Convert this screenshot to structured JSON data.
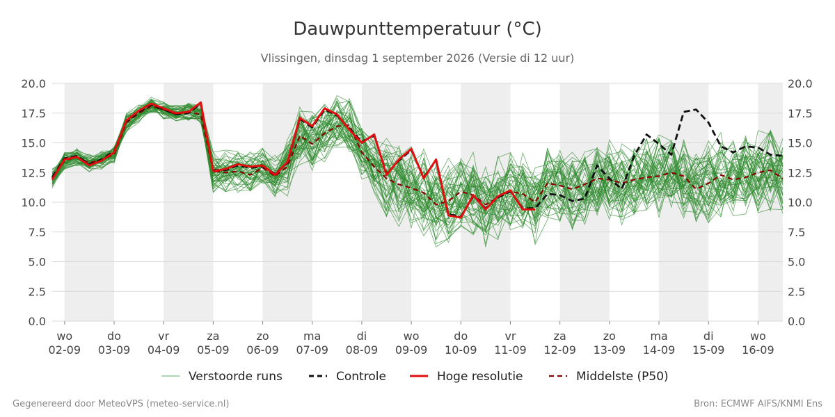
{
  "header": {
    "title": "Dauwpunttemperatuur (°C)",
    "subtitle": "Vlissingen, dinsdag  1 september 2026 (Versie di 12 uur)"
  },
  "footer": {
    "left": "Gegenereerd door MeteoVPS (meteo-service.nl)",
    "right": "Bron: ECMWF AIFS/KNMI Ens"
  },
  "legend": [
    {
      "label": "Verstoorde runs",
      "color": "#3a9a3a",
      "style": "thin"
    },
    {
      "label": "Controle",
      "color": "#111111",
      "style": "dashed"
    },
    {
      "label": "Hoge resolutie",
      "color": "#e01010",
      "style": "solid"
    },
    {
      "label": "Middelste (P50)",
      "color": "#8b0000",
      "style": "dashed"
    }
  ],
  "chart_data": {
    "type": "line",
    "title": "Dauwpunttemperatuur (°C)",
    "x_unit": "dagen vanaf 02-09 00 uur",
    "xlim": [
      -0.25,
      14.5
    ],
    "ylim": [
      0,
      20
    ],
    "y_ticks": [
      "0.0",
      "2.5",
      "5.0",
      "7.5",
      "10.0",
      "12.5",
      "15.0",
      "17.5",
      "20.0"
    ],
    "days": [
      {
        "dow": "wo",
        "date": "02-09"
      },
      {
        "dow": "do",
        "date": "03-09"
      },
      {
        "dow": "vr",
        "date": "04-09"
      },
      {
        "dow": "za",
        "date": "05-09"
      },
      {
        "dow": "zo",
        "date": "06-09"
      },
      {
        "dow": "ma",
        "date": "07-09"
      },
      {
        "dow": "di",
        "date": "08-09"
      },
      {
        "dow": "wo",
        "date": "09-09"
      },
      {
        "dow": "do",
        "date": "10-09"
      },
      {
        "dow": "vr",
        "date": "11-09"
      },
      {
        "dow": "za",
        "date": "12-09"
      },
      {
        "dow": "zo",
        "date": "13-09"
      },
      {
        "dow": "ma",
        "date": "14-09"
      },
      {
        "dow": "di",
        "date": "15-09"
      },
      {
        "dow": "wo",
        "date": "16-09"
      }
    ],
    "grid": true,
    "legend_position": "bottom",
    "ensemble_members": 50,
    "ensemble_color": "#2e8b2e",
    "series": [
      {
        "name": "Hoge resolutie",
        "color": "#e01010",
        "points": [
          [
            -0.25,
            11.9
          ],
          [
            0,
            13.6
          ],
          [
            0.25,
            13.8
          ],
          [
            0.5,
            13.1
          ],
          [
            0.75,
            13.5
          ],
          [
            1,
            14.2
          ],
          [
            1.25,
            16.9
          ],
          [
            1.5,
            17.7
          ],
          [
            1.75,
            18.3
          ],
          [
            2,
            17.9
          ],
          [
            2.25,
            17.5
          ],
          [
            2.5,
            17.6
          ],
          [
            2.75,
            18.4
          ],
          [
            3,
            12.6
          ],
          [
            3.25,
            12.8
          ],
          [
            3.5,
            13.2
          ],
          [
            3.75,
            13.0
          ],
          [
            4,
            13.1
          ],
          [
            4.25,
            12.3
          ],
          [
            4.5,
            13.4
          ],
          [
            4.75,
            17.1
          ],
          [
            5,
            16.4
          ],
          [
            5.25,
            17.9
          ],
          [
            5.5,
            17.4
          ],
          [
            5.75,
            16.1
          ],
          [
            6,
            15.0
          ],
          [
            6.25,
            15.7
          ],
          [
            6.5,
            12.3
          ],
          [
            6.75,
            13.6
          ],
          [
            7,
            14.5
          ],
          [
            7.25,
            12.0
          ],
          [
            7.5,
            13.6
          ],
          [
            7.75,
            8.9
          ],
          [
            8,
            8.7
          ],
          [
            8.25,
            10.6
          ],
          [
            8.5,
            9.4
          ],
          [
            8.75,
            10.5
          ],
          [
            9,
            11.0
          ],
          [
            9.25,
            9.4
          ],
          [
            9.5,
            9.4
          ]
        ]
      },
      {
        "name": "Controle",
        "color": "#111111",
        "points": [
          [
            -0.25,
            12.1
          ],
          [
            0,
            13.7
          ],
          [
            0.25,
            13.9
          ],
          [
            0.5,
            13.2
          ],
          [
            0.75,
            13.6
          ],
          [
            1,
            14.3
          ],
          [
            1.25,
            16.8
          ],
          [
            1.5,
            17.6
          ],
          [
            1.75,
            18.2
          ],
          [
            2,
            17.8
          ],
          [
            2.25,
            17.4
          ],
          [
            2.5,
            17.5
          ],
          [
            2.75,
            18.3
          ],
          [
            3,
            12.7
          ],
          [
            3.25,
            12.7
          ],
          [
            3.5,
            13.1
          ],
          [
            3.75,
            12.9
          ],
          [
            4,
            13.0
          ],
          [
            4.25,
            12.4
          ],
          [
            4.5,
            13.3
          ],
          [
            4.75,
            17.0
          ],
          [
            5,
            16.3
          ],
          [
            5.25,
            17.8
          ],
          [
            5.5,
            17.3
          ],
          [
            5.75,
            16.2
          ],
          [
            6,
            15.1
          ],
          [
            6.25,
            15.6
          ],
          [
            6.5,
            12.4
          ],
          [
            6.75,
            13.5
          ],
          [
            7,
            14.4
          ],
          [
            7.25,
            12.1
          ],
          [
            7.5,
            13.5
          ],
          [
            7.75,
            9.0
          ],
          [
            8,
            8.8
          ],
          [
            8.25,
            10.5
          ],
          [
            8.5,
            9.5
          ],
          [
            8.75,
            10.4
          ],
          [
            9,
            10.9
          ],
          [
            9.25,
            9.5
          ],
          [
            9.5,
            9.5
          ],
          [
            9.75,
            10.7
          ],
          [
            10,
            10.6
          ],
          [
            10.25,
            10.1
          ],
          [
            10.5,
            10.3
          ],
          [
            10.75,
            13.1
          ],
          [
            11,
            12.0
          ],
          [
            11.25,
            11.1
          ],
          [
            11.5,
            13.9
          ],
          [
            11.75,
            15.7
          ],
          [
            12,
            14.9
          ],
          [
            12.25,
            14.0
          ],
          [
            12.5,
            17.6
          ],
          [
            12.75,
            17.8
          ],
          [
            13,
            16.7
          ],
          [
            13.25,
            14.7
          ],
          [
            13.5,
            14.2
          ],
          [
            13.75,
            14.7
          ],
          [
            14,
            14.6
          ],
          [
            14.25,
            14.0
          ],
          [
            14.5,
            13.9
          ]
        ]
      },
      {
        "name": "Middelste (P50)",
        "color": "#8b0000",
        "points": [
          [
            -0.25,
            12.0
          ],
          [
            0,
            13.5
          ],
          [
            0.25,
            13.8
          ],
          [
            0.5,
            13.3
          ],
          [
            0.75,
            13.6
          ],
          [
            1,
            14.0
          ],
          [
            1.25,
            16.7
          ],
          [
            1.5,
            17.5
          ],
          [
            1.75,
            18.1
          ],
          [
            2,
            17.8
          ],
          [
            2.25,
            17.4
          ],
          [
            2.5,
            17.6
          ],
          [
            2.75,
            17.4
          ],
          [
            3,
            12.6
          ],
          [
            3.25,
            12.5
          ],
          [
            3.5,
            12.6
          ],
          [
            3.75,
            12.3
          ],
          [
            4,
            12.9
          ],
          [
            4.25,
            12.2
          ],
          [
            4.5,
            13.0
          ],
          [
            4.75,
            15.6
          ],
          [
            5,
            14.9
          ],
          [
            5.25,
            15.8
          ],
          [
            5.5,
            16.4
          ],
          [
            5.75,
            16.5
          ],
          [
            6,
            14.2
          ],
          [
            6.25,
            13.0
          ],
          [
            6.5,
            12.0
          ],
          [
            6.75,
            11.5
          ],
          [
            7,
            11.2
          ],
          [
            7.25,
            10.8
          ],
          [
            7.5,
            9.8
          ],
          [
            7.75,
            10.1
          ],
          [
            8,
            10.9
          ],
          [
            8.25,
            10.6
          ],
          [
            8.5,
            9.8
          ],
          [
            8.75,
            10.4
          ],
          [
            9,
            10.9
          ],
          [
            9.25,
            10.7
          ],
          [
            9.5,
            10.0
          ],
          [
            9.75,
            11.6
          ],
          [
            10,
            11.4
          ],
          [
            10.25,
            11.1
          ],
          [
            10.5,
            11.5
          ],
          [
            10.75,
            12.0
          ],
          [
            11,
            11.9
          ],
          [
            11.25,
            11.6
          ],
          [
            11.5,
            11.9
          ],
          [
            11.75,
            12.1
          ],
          [
            12,
            12.2
          ],
          [
            12.25,
            12.5
          ],
          [
            12.5,
            12.2
          ],
          [
            12.75,
            11.1
          ],
          [
            13,
            11.6
          ],
          [
            13.25,
            12.3
          ],
          [
            13.5,
            11.9
          ],
          [
            13.75,
            12.1
          ],
          [
            14,
            12.5
          ],
          [
            14.25,
            12.7
          ],
          [
            14.5,
            12.0
          ]
        ]
      }
    ]
  }
}
